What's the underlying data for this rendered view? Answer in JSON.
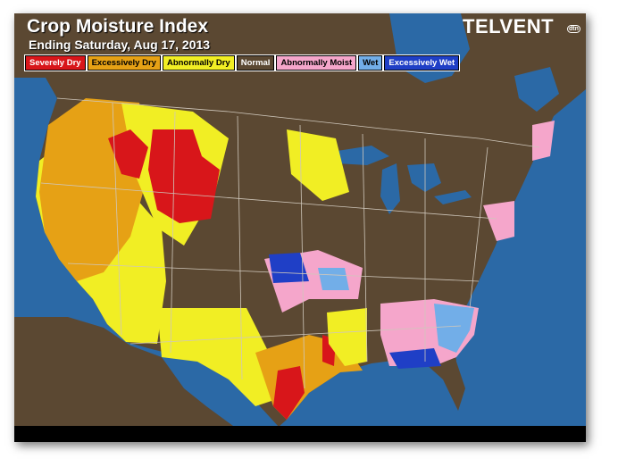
{
  "header": {
    "title": "Crop Moisture Index",
    "subtitle": "Ending Saturday, Aug 17, 2013",
    "logo": "TELVENT",
    "logo_sub": "dtn"
  },
  "legend": [
    {
      "label": "Severely Dry",
      "color": "#d8161a"
    },
    {
      "label": "Excessively Dry",
      "color": "#e6a115"
    },
    {
      "label": "Abnormally Dry",
      "color": "#f1ee24"
    },
    {
      "label": "Normal",
      "color": "#5b4832"
    },
    {
      "label": "Abnormally Moist",
      "color": "#f5a6cb"
    },
    {
      "label": "Wet",
      "color": "#72aee8"
    },
    {
      "label": "Excessively Wet",
      "color": "#1f3fc6"
    }
  ]
}
